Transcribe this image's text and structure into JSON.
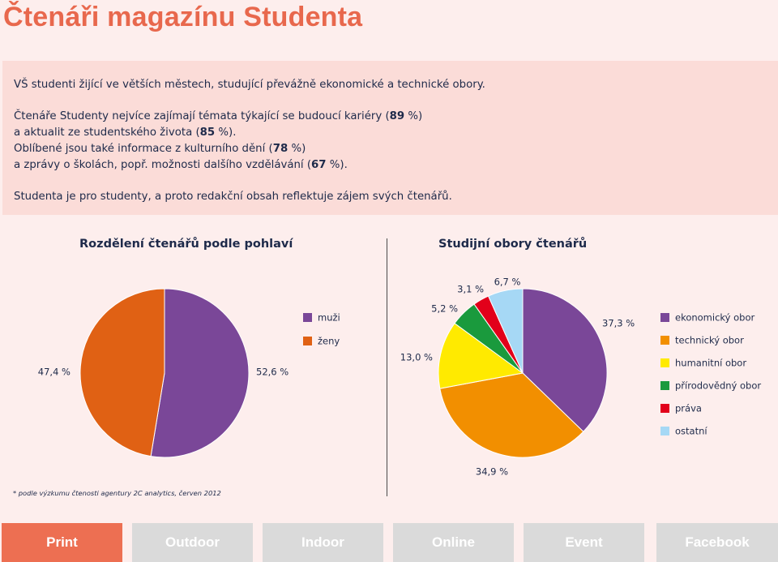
{
  "page": {
    "title": "Čtenáři magazínu Studenta",
    "footnote": "* podle výzkumu čtenosti agentury 2C analytics, červen 2012"
  },
  "intro": {
    "line1": "VŠ studenti žijící ve větších městech, studující převážně ekonomické a technické obory.",
    "line2_a": "Čtenáře Studenty nejvíce zajímají témata týkající se budoucí kariéry (",
    "line2_b": "89",
    "line2_c": " %)",
    "line3_a": "a aktualit ze studentského života (",
    "line3_b": "85",
    "line3_c": " %).",
    "line4_a": "Oblíbené jsou také informace z kulturního dění (",
    "line4_b": "78",
    "line4_c": " %)",
    "line5_a": "a zprávy o školách, popř. možnosti dalšího vzdělávání (",
    "line5_b": "67",
    "line5_c": " %).",
    "line6": "Studenta je pro studenty, a proto redakční obsah reflektuje zájem svých čtenářů."
  },
  "chart_data": [
    {
      "type": "pie",
      "title": "Rozdělení čtenářů podle pohlaví",
      "categories": [
        "muži",
        "ženy"
      ],
      "values": [
        52.6,
        47.4
      ],
      "value_labels": [
        "52,6 %",
        "47,4 %"
      ],
      "colors": [
        "#7a4798",
        "#e06114"
      ],
      "legend": "right"
    },
    {
      "type": "pie",
      "title": "Studijní obory čtenářů",
      "categories": [
        "ekonomický obor",
        "technický obor",
        "humanitní obor",
        "přírodovědný obor",
        "práva",
        "ostatní"
      ],
      "values": [
        37.3,
        34.9,
        13.0,
        5.2,
        3.1,
        6.7
      ],
      "value_labels": [
        "37,3 %",
        "34,9 %",
        "13,0 %",
        "5,2 %",
        "3,1 %",
        "6,7 %"
      ],
      "colors": [
        "#7a4798",
        "#f28f00",
        "#ffea00",
        "#1a9a3d",
        "#e2001a",
        "#a6d8f5"
      ],
      "legend": "right"
    }
  ],
  "nav": {
    "tabs": [
      {
        "label": "Print"
      },
      {
        "label": "Outdoor"
      },
      {
        "label": "Indoor"
      },
      {
        "label": "Online"
      },
      {
        "label": "Event"
      },
      {
        "label": "Facebook"
      }
    ]
  }
}
